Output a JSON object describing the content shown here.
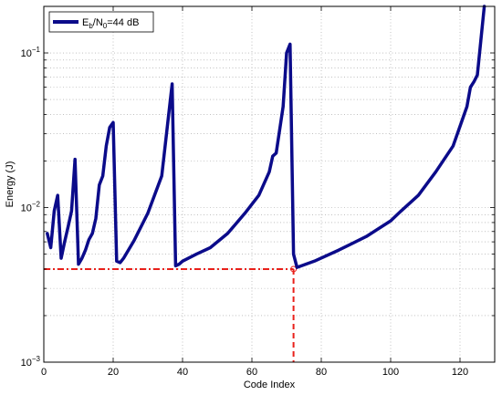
{
  "chart_data": {
    "type": "line",
    "xlabel": "Code Index",
    "ylabel": "Energy (J)",
    "xlim": [
      0,
      130
    ],
    "ylim": [
      0.001,
      0.2
    ],
    "yscale": "log",
    "grid": true,
    "legend_placement": "top-left",
    "x_ticks": [
      0,
      20,
      40,
      60,
      80,
      100,
      120
    ],
    "x_tick_labels": [
      "0",
      "20",
      "40",
      "60",
      "80",
      "100",
      "120"
    ],
    "y_tick_labels": [
      {
        "value": 0.001,
        "base": "10",
        "exp": "−3"
      },
      {
        "value": 0.01,
        "base": "10",
        "exp": "−2"
      },
      {
        "value": 0.1,
        "base": "10",
        "exp": "−1"
      }
    ],
    "series": [
      {
        "name_main": "E",
        "name_sub1": "b",
        "name_mid": "/N",
        "name_sub2": "0",
        "name_tail": "=44 dB",
        "color": "#0b0b8a",
        "x": [
          1,
          2,
          3,
          4,
          5,
          6,
          7,
          8,
          9,
          10,
          11,
          12,
          13,
          14,
          15,
          16,
          17,
          18,
          19,
          20,
          21,
          22,
          23,
          26,
          30,
          34,
          37,
          38,
          39,
          40,
          44,
          48,
          53,
          58,
          62,
          65,
          66,
          67,
          69,
          70,
          71,
          72,
          73,
          78,
          85,
          93,
          100,
          103,
          108,
          113,
          118,
          122,
          123,
          124,
          125,
          126,
          127
        ],
        "y": [
          0.0068,
          0.0055,
          0.0095,
          0.012,
          0.0047,
          0.006,
          0.0075,
          0.0095,
          0.0205,
          0.0043,
          0.0047,
          0.0053,
          0.0062,
          0.0068,
          0.0085,
          0.014,
          0.016,
          0.025,
          0.033,
          0.0355,
          0.0045,
          0.0044,
          0.0047,
          0.0061,
          0.0092,
          0.016,
          0.063,
          0.0042,
          0.0043,
          0.0045,
          0.005,
          0.0055,
          0.0068,
          0.0092,
          0.012,
          0.017,
          0.0215,
          0.0225,
          0.045,
          0.1,
          0.114,
          0.005,
          0.0041,
          0.0045,
          0.0053,
          0.0065,
          0.0082,
          0.0095,
          0.012,
          0.017,
          0.025,
          0.045,
          0.06,
          0.065,
          0.072,
          0.12,
          0.2
        ]
      }
    ],
    "reference": {
      "y_level": 0.004,
      "x_position": 72,
      "color": "#e8201a"
    }
  }
}
